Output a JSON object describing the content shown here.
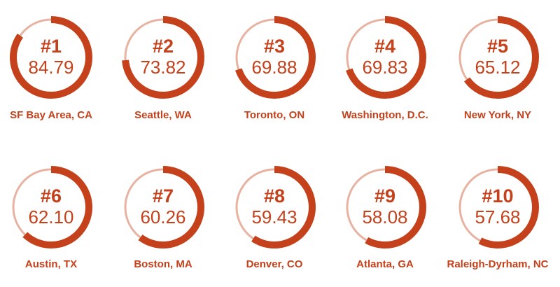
{
  "chart_data": {
    "type": "gauge",
    "ranks": [
      "#1",
      "#2",
      "#3",
      "#4",
      "#5",
      "#6",
      "#7",
      "#8",
      "#9",
      "#10"
    ],
    "categories": [
      "SF Bay Area, CA",
      "Seattle, WA",
      "Toronto, ON",
      "Washington, D.C.",
      "New York, NY",
      "Austin, TX",
      "Boston, MA",
      "Denver, CO",
      "Atlanta, GA",
      "Raleigh-Dyrham, NC"
    ],
    "values": [
      84.79,
      73.82,
      69.88,
      69.83,
      65.12,
      62.1,
      60.26,
      59.43,
      58.08,
      57.68
    ],
    "value_labels": [
      "84.79",
      "73.82",
      "69.88",
      "69.83",
      "65.12",
      "62.10",
      "60.26",
      "59.43",
      "58.08",
      "57.68"
    ],
    "ylim": [
      0,
      100
    ],
    "color": "#c4411b",
    "track_color": "#e8b2a1"
  }
}
